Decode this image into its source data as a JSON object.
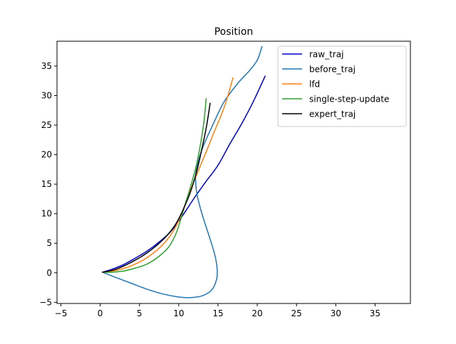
{
  "chart_data": {
    "type": "line",
    "title": "Position",
    "xlabel": "",
    "ylabel": "",
    "xlim": [
      -5.5,
      39.5
    ],
    "ylim": [
      -5.2,
      39.2
    ],
    "xticks": [
      -5,
      0,
      5,
      10,
      15,
      20,
      25,
      30,
      35
    ],
    "yticks": [
      -5,
      0,
      5,
      10,
      15,
      20,
      25,
      30,
      35
    ],
    "grid": false,
    "legend_position": "top-right",
    "series": [
      {
        "name": "raw_traj",
        "color": "#0000cc",
        "points": [
          [
            0.3,
            0.1
          ],
          [
            1.5,
            0.6
          ],
          [
            3,
            1.4
          ],
          [
            4.5,
            2.5
          ],
          [
            6,
            3.7
          ],
          [
            7.5,
            5.2
          ],
          [
            9,
            7
          ],
          [
            10.5,
            9.7
          ],
          [
            12,
            12.7
          ],
          [
            13.5,
            15.5
          ],
          [
            15,
            18.2
          ],
          [
            16.5,
            21.8
          ],
          [
            18,
            25.2
          ],
          [
            19.5,
            29
          ],
          [
            21,
            33.3
          ]
        ]
      },
      {
        "name": "before_traj",
        "color": "#1f77b4",
        "points": [
          [
            0.3,
            0.1
          ],
          [
            2,
            -0.8
          ],
          [
            4,
            -1.8
          ],
          [
            6,
            -2.8
          ],
          [
            8,
            -3.6
          ],
          [
            10,
            -4.1
          ],
          [
            11.5,
            -4.2
          ],
          [
            13,
            -3.9
          ],
          [
            14.2,
            -2.9
          ],
          [
            14.8,
            -1.2
          ],
          [
            14.9,
            0.5
          ],
          [
            14.6,
            3
          ],
          [
            13.8,
            6.5
          ],
          [
            13,
            9.8
          ],
          [
            12.3,
            13.5
          ],
          [
            12.2,
            17
          ],
          [
            13,
            21
          ],
          [
            14.5,
            25.5
          ],
          [
            15.8,
            29
          ],
          [
            17.6,
            32.2
          ],
          [
            19,
            34.2
          ],
          [
            20,
            36
          ],
          [
            20.6,
            38.3
          ]
        ]
      },
      {
        "name": "lfd",
        "color": "#ff7f0e",
        "points": [
          [
            0.3,
            0.1
          ],
          [
            2,
            0.4
          ],
          [
            4,
            1.2
          ],
          [
            6,
            2.6
          ],
          [
            8,
            4.8
          ],
          [
            9.5,
            7.5
          ],
          [
            10.5,
            10.5
          ],
          [
            11.5,
            14
          ],
          [
            12.5,
            17.3
          ],
          [
            13.5,
            20.5
          ],
          [
            14.5,
            23.8
          ],
          [
            15.5,
            27
          ],
          [
            16.2,
            29.7
          ],
          [
            16.9,
            33
          ]
        ]
      },
      {
        "name": "single-step-update",
        "color": "#2ca02c",
        "points": [
          [
            0.3,
            0.1
          ],
          [
            1.5,
            0.1
          ],
          [
            3,
            0.3
          ],
          [
            4.5,
            0.8
          ],
          [
            6,
            1.5
          ],
          [
            7.5,
            2.8
          ],
          [
            8.8,
            4.5
          ],
          [
            9.7,
            6.8
          ],
          [
            10.2,
            8.8
          ],
          [
            10.8,
            11.5
          ],
          [
            11.6,
            15
          ],
          [
            12.3,
            18.5
          ],
          [
            12.8,
            22
          ],
          [
            13.2,
            25.5
          ],
          [
            13.5,
            29.5
          ]
        ]
      },
      {
        "name": "expert_traj",
        "color": "#000000",
        "points": [
          [
            0.3,
            0.1
          ],
          [
            2,
            0.6
          ],
          [
            4,
            1.8
          ],
          [
            6,
            3.4
          ],
          [
            8,
            5.6
          ],
          [
            9.5,
            8
          ],
          [
            10.5,
            10.5
          ],
          [
            11.5,
            13.7
          ],
          [
            12.3,
            17.2
          ],
          [
            12.9,
            20.7
          ],
          [
            13.5,
            24.5
          ],
          [
            14,
            28.7
          ]
        ]
      }
    ]
  }
}
